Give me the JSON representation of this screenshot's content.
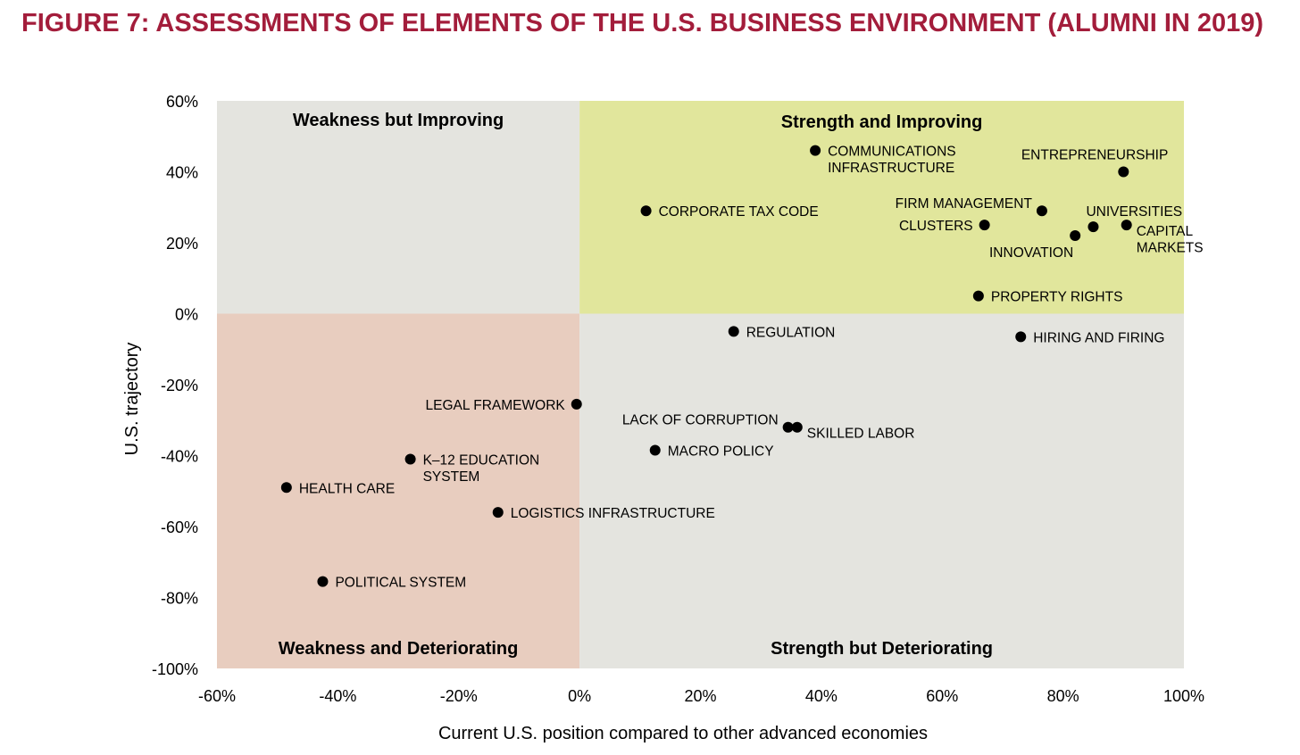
{
  "title": "FIGURE 7: ASSESSMENTS OF ELEMENTS OF THE U.S. BUSINESS ENVIRONMENT (ALUMNI IN 2019)",
  "colors": {
    "title": "#a31d3b",
    "strength_improving": "#e1e69c",
    "weakness_deteriorating": "#e8cdbf",
    "neutral": "#e4e4df",
    "point": "#000000"
  },
  "chart_data": {
    "type": "scatter",
    "xlabel": "Current U.S. position compared to other advanced economies",
    "ylabel": "U.S. trajectory",
    "xlim": [
      -60,
      100
    ],
    "ylim": [
      -100,
      60
    ],
    "x_ticks": [
      "-60%",
      "-40%",
      "-20%",
      "0%",
      "20%",
      "40%",
      "60%",
      "80%",
      "100%"
    ],
    "y_ticks": [
      "60%",
      "40%",
      "20%",
      "0%",
      "-20%",
      "-40%",
      "-60%",
      "-80%",
      "-100%"
    ],
    "grid": false,
    "quadrants": [
      {
        "label": "Weakness but Improving",
        "fill": "neutral"
      },
      {
        "label": "Strength and Improving",
        "fill": "strength_improving"
      },
      {
        "label": "Weakness and Deteriorating",
        "fill": "weakness_deteriorating"
      },
      {
        "label": "Strength but Deteriorating",
        "fill": "neutral"
      }
    ],
    "points": [
      {
        "label": [
          "COMMUNICATIONS",
          "INFRASTRUCTURE"
        ],
        "x": 39,
        "y": 46,
        "anchor": "right"
      },
      {
        "label": [
          "ENTREPRENEURSHIP"
        ],
        "x": 90,
        "y": 40,
        "anchor": "above-left"
      },
      {
        "label": [
          "CORPORATE TAX CODE"
        ],
        "x": 11,
        "y": 29,
        "anchor": "right"
      },
      {
        "label": [
          "FIRM MANAGEMENT"
        ],
        "x": 76.5,
        "y": 29,
        "anchor": "left-up"
      },
      {
        "label": [
          "CLUSTERS"
        ],
        "x": 67,
        "y": 25,
        "anchor": "left"
      },
      {
        "label": [
          "UNIVERSITIES"
        ],
        "x": 85,
        "y": 24.5,
        "anchor": "above-right"
      },
      {
        "label": [
          "CAPITAL",
          "MARKETS"
        ],
        "x": 90.5,
        "y": 25,
        "anchor": "right-down"
      },
      {
        "label": [
          "INNOVATION"
        ],
        "x": 82,
        "y": 22,
        "anchor": "below-left"
      },
      {
        "label": [
          "PROPERTY RIGHTS"
        ],
        "x": 66,
        "y": 5,
        "anchor": "right"
      },
      {
        "label": [
          "REGULATION"
        ],
        "x": 25.5,
        "y": -5,
        "anchor": "right"
      },
      {
        "label": [
          "HIRING AND FIRING"
        ],
        "x": 73,
        "y": -6.5,
        "anchor": "right"
      },
      {
        "label": [
          "LEGAL FRAMEWORK"
        ],
        "x": -0.5,
        "y": -25.5,
        "anchor": "left"
      },
      {
        "label": [
          "LACK OF CORRUPTION"
        ],
        "x": 34.5,
        "y": -32,
        "anchor": "left-up"
      },
      {
        "label": [
          "SKILLED LABOR"
        ],
        "x": 36,
        "y": -32,
        "anchor": "right-down"
      },
      {
        "label": [
          "MACRO POLICY"
        ],
        "x": 12.5,
        "y": -38.5,
        "anchor": "right"
      },
      {
        "label": [
          "K–12 EDUCATION",
          "SYSTEM"
        ],
        "x": -28,
        "y": -41,
        "anchor": "right"
      },
      {
        "label": [
          "HEALTH CARE"
        ],
        "x": -48.5,
        "y": -49,
        "anchor": "right"
      },
      {
        "label": [
          "LOGISTICS INFRASTRUCTURE"
        ],
        "x": -13.5,
        "y": -56,
        "anchor": "right"
      },
      {
        "label": [
          "POLITICAL SYSTEM"
        ],
        "x": -42.5,
        "y": -75.5,
        "anchor": "right"
      }
    ]
  }
}
